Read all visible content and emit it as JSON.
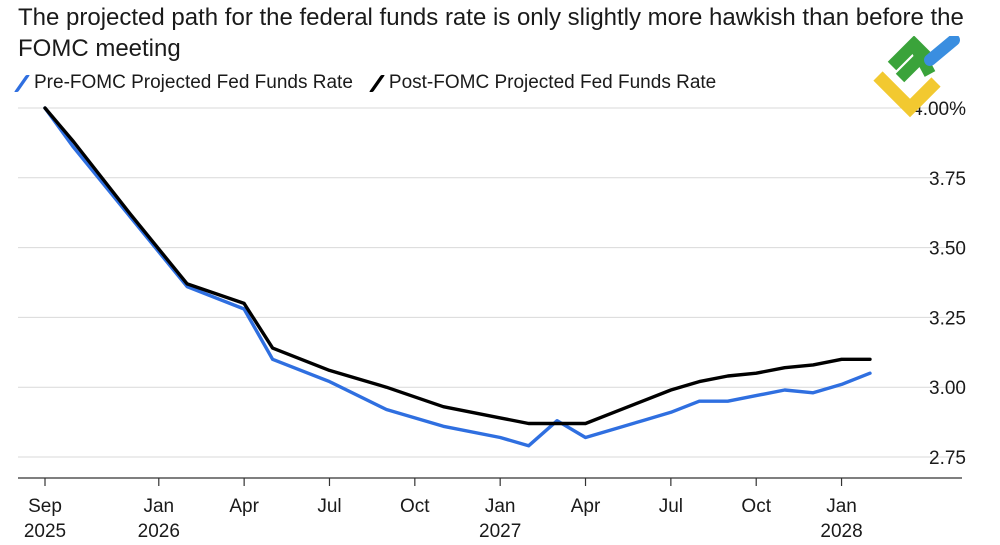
{
  "chart_data": {
    "type": "line",
    "title": "The projected path for the federal funds rate is only slightly more hawkish than before the FOMC meeting",
    "xlabel": "",
    "ylabel": "",
    "ylim": [
      2.75,
      4.0
    ],
    "y_ticks": [
      {
        "value": 4.0,
        "label": "4.00%"
      },
      {
        "value": 3.75,
        "label": "3.75"
      },
      {
        "value": 3.5,
        "label": "3.50"
      },
      {
        "value": 3.25,
        "label": "3.25"
      },
      {
        "value": 3.0,
        "label": "3.00"
      },
      {
        "value": 2.75,
        "label": "2.75"
      }
    ],
    "x_ticks": [
      {
        "month": 0,
        "label": "Sep",
        "year": "2025"
      },
      {
        "month": 4,
        "label": "Jan",
        "year": "2026"
      },
      {
        "month": 7,
        "label": "Apr",
        "year": ""
      },
      {
        "month": 10,
        "label": "Jul",
        "year": ""
      },
      {
        "month": 13,
        "label": "Oct",
        "year": ""
      },
      {
        "month": 16,
        "label": "Jan",
        "year": "2027"
      },
      {
        "month": 19,
        "label": "Apr",
        "year": ""
      },
      {
        "month": 22,
        "label": "Jul",
        "year": ""
      },
      {
        "month": 25,
        "label": "Oct",
        "year": ""
      },
      {
        "month": 28,
        "label": "Jan",
        "year": "2028"
      }
    ],
    "x_months": [
      0,
      1,
      3,
      5,
      7,
      8,
      10,
      12,
      14,
      16,
      17,
      18,
      19,
      20,
      21,
      22,
      23,
      24,
      25,
      26,
      27,
      28,
      29
    ],
    "series": [
      {
        "name": "Pre-FOMC Projected Fed Funds Rate",
        "color": "#2f6fe0",
        "values": [
          4.0,
          3.86,
          3.61,
          3.36,
          3.28,
          3.1,
          3.02,
          2.92,
          2.86,
          2.82,
          2.79,
          2.88,
          2.82,
          2.85,
          2.88,
          2.91,
          2.95,
          2.95,
          2.97,
          2.99,
          2.98,
          3.01,
          3.05
        ]
      },
      {
        "name": "Post-FOMC Projected Fed Funds Rate",
        "color": "#000000",
        "values": [
          4.0,
          3.88,
          3.62,
          3.37,
          3.3,
          3.14,
          3.06,
          3.0,
          2.93,
          2.89,
          2.87,
          2.87,
          2.87,
          2.91,
          2.95,
          2.99,
          3.02,
          3.04,
          3.05,
          3.07,
          3.08,
          3.1,
          3.1
        ]
      }
    ]
  }
}
